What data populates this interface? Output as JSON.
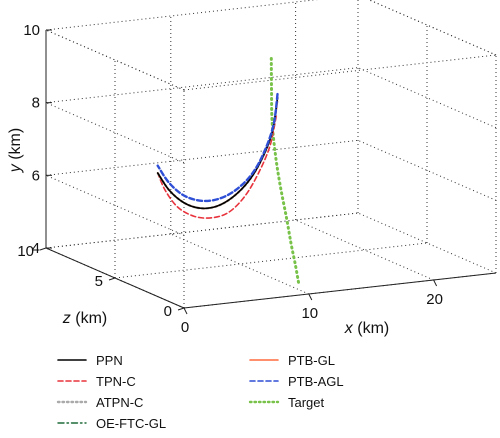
{
  "chart_data": {
    "type": "line",
    "projection": "3d",
    "grid": true,
    "legend_placement": "bottom",
    "xlabel": {
      "name": "x",
      "unit": "(km)"
    },
    "ylabel": {
      "name": "y",
      "unit": "(km)"
    },
    "zlabel": {
      "name": "z",
      "unit": "(km)"
    },
    "xlim": [
      0,
      25
    ],
    "ylim": [
      4,
      10
    ],
    "zlim": [
      0,
      10
    ],
    "x_ticks": [
      "0",
      "10",
      "20"
    ],
    "y_ticks": [
      "4",
      "6",
      "8",
      "10"
    ],
    "z_ticks": [
      "0",
      "5",
      "10"
    ],
    "colors": {
      "PPN": "#000000",
      "TPN-C": "#e8333c",
      "ATPN-C": "#aaaaaa",
      "OE-FTC-GL": "#1f6b3a",
      "PTB-GL": "#ff6a3d",
      "PTB-AGL": "#2e4fd6",
      "Target": "#79c24a"
    },
    "series": [
      {
        "name": "PPN",
        "style": "solid",
        "points": [
          [
            12.8,
            8.5,
            4.8
          ],
          [
            12.4,
            7.6,
            4.8
          ],
          [
            11.6,
            6.9,
            4.8
          ],
          [
            10.5,
            6.3,
            4.8
          ],
          [
            9.2,
            5.9,
            4.8
          ],
          [
            7.9,
            5.7,
            4.8
          ],
          [
            6.6,
            5.7,
            4.8
          ],
          [
            5.3,
            5.9,
            4.8
          ],
          [
            4.1,
            6.3,
            4.8
          ],
          [
            3.2,
            6.8,
            4.8
          ]
        ]
      },
      {
        "name": "TPN-C",
        "style": "dashed",
        "points": [
          [
            12.7,
            8.0,
            4.8
          ],
          [
            12.2,
            7.2,
            4.8
          ],
          [
            11.3,
            6.5,
            4.8
          ],
          [
            10.2,
            5.9,
            4.8
          ],
          [
            8.9,
            5.5,
            4.8
          ],
          [
            7.5,
            5.4,
            4.8
          ],
          [
            6.1,
            5.5,
            4.8
          ],
          [
            4.8,
            5.8,
            4.8
          ],
          [
            3.8,
            6.3,
            4.8
          ],
          [
            3.2,
            6.8,
            4.8
          ]
        ]
      },
      {
        "name": "ATPN-C",
        "style": "dotted",
        "points": [
          [
            12.8,
            8.5,
            4.8
          ],
          [
            12.4,
            7.6,
            4.8
          ],
          [
            11.6,
            6.9,
            4.8
          ],
          [
            10.5,
            6.3,
            4.8
          ],
          [
            9.2,
            5.9,
            4.8
          ],
          [
            7.9,
            5.7,
            4.8
          ],
          [
            6.6,
            5.7,
            4.8
          ],
          [
            5.3,
            5.9,
            4.8
          ],
          [
            4.1,
            6.3,
            4.8
          ],
          [
            3.2,
            6.8,
            4.8
          ]
        ]
      },
      {
        "name": "OE-FTC-GL",
        "style": "dashdot",
        "points": [
          [
            12.8,
            8.5,
            4.8
          ],
          [
            12.4,
            7.6,
            4.8
          ],
          [
            11.6,
            6.9,
            4.8
          ],
          [
            10.5,
            6.3,
            4.8
          ],
          [
            9.2,
            5.9,
            4.8
          ],
          [
            7.9,
            5.7,
            4.8
          ],
          [
            6.6,
            5.7,
            4.8
          ],
          [
            5.3,
            5.9,
            4.8
          ],
          [
            4.1,
            6.3,
            4.8
          ],
          [
            3.2,
            6.8,
            4.8
          ]
        ]
      },
      {
        "name": "PTB-GL",
        "style": "solid",
        "points": [
          [
            12.8,
            8.4,
            4.8
          ],
          [
            12.4,
            7.6,
            4.8
          ],
          [
            11.6,
            6.9,
            4.8
          ],
          [
            10.5,
            6.3,
            4.8
          ],
          [
            9.2,
            5.9,
            4.8
          ],
          [
            7.9,
            5.7,
            4.8
          ],
          [
            6.6,
            5.7,
            4.8
          ],
          [
            5.3,
            5.9,
            4.8
          ],
          [
            4.1,
            6.3,
            4.8
          ],
          [
            3.2,
            6.8,
            4.8
          ]
        ]
      },
      {
        "name": "PTB-AGL",
        "style": "dashed",
        "points": [
          [
            12.8,
            8.6,
            4.8
          ],
          [
            12.5,
            7.8,
            4.8
          ],
          [
            11.8,
            7.1,
            4.8
          ],
          [
            10.8,
            6.5,
            4.8
          ],
          [
            9.5,
            6.1,
            4.8
          ],
          [
            8.1,
            5.9,
            4.8
          ],
          [
            6.7,
            5.9,
            4.8
          ],
          [
            5.3,
            6.1,
            4.8
          ],
          [
            4.1,
            6.5,
            4.8
          ],
          [
            3.2,
            7.0,
            4.8
          ]
        ]
      },
      {
        "name": "Target",
        "style": "dotted",
        "points": [
          [
            12.3,
            9.6,
            4.8
          ],
          [
            12.1,
            8.8,
            4.6
          ],
          [
            11.7,
            8.0,
            4.2
          ],
          [
            11.2,
            7.2,
            3.5
          ],
          [
            10.7,
            6.5,
            2.7
          ],
          [
            10.3,
            5.8,
            1.9
          ],
          [
            9.9,
            5.2,
            1.2
          ],
          [
            9.6,
            4.7,
            0.6
          ],
          [
            9.4,
            4.3,
            0.2
          ]
        ]
      }
    ]
  }
}
